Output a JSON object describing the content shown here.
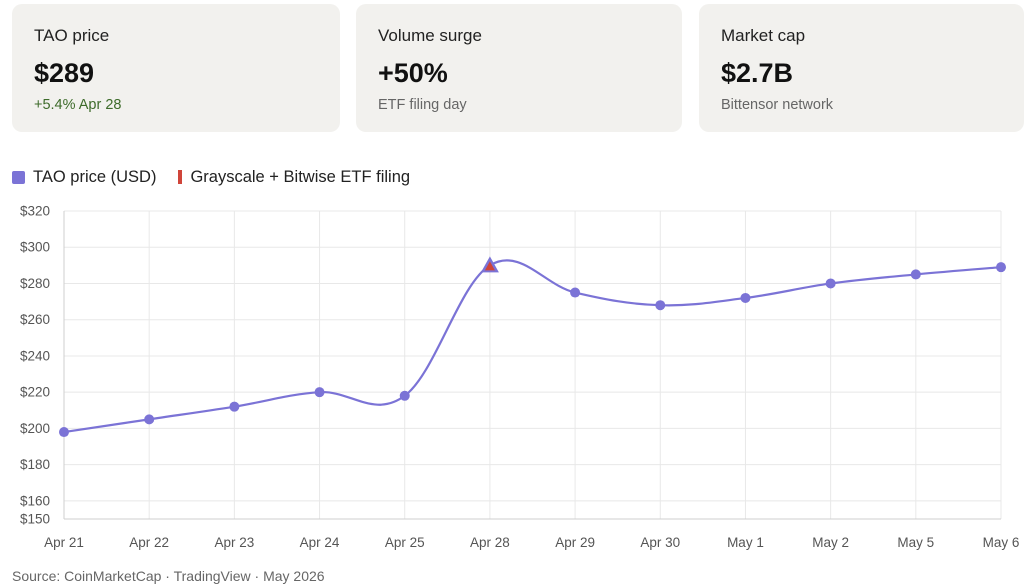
{
  "cards": [
    {
      "label": "TAO price",
      "value": "$289",
      "sub": "+5.4% Apr 28",
      "sub_tone": "positive"
    },
    {
      "label": "Volume surge",
      "value": "+50%",
      "sub": "ETF filing day",
      "sub_tone": "neutral"
    },
    {
      "label": "Market cap",
      "value": "$2.7B",
      "sub": "Bittensor network",
      "sub_tone": "neutral"
    }
  ],
  "legend": {
    "price_label": "TAO price (USD)",
    "event_label": "Grayscale + Bitwise ETF filing"
  },
  "source": "Source: CoinMarketCap · TradingView · May 2026",
  "colors": {
    "line": "#7b73d6",
    "event": "#d0453a",
    "positive": "#3d6b2a"
  },
  "chart_data": {
    "type": "line",
    "x": [
      "Apr 21",
      "Apr 22",
      "Apr 23",
      "Apr 24",
      "Apr 25",
      "Apr 28",
      "Apr 29",
      "Apr 30",
      "May 1",
      "May 2",
      "May 5",
      "May 6"
    ],
    "series": [
      {
        "name": "TAO price (USD)",
        "values": [
          198,
          205,
          212,
          220,
          218,
          290,
          275,
          268,
          272,
          280,
          285,
          289
        ]
      }
    ],
    "event": {
      "name": "Grayscale + Bitwise ETF filing",
      "x": "Apr 28",
      "value": 290,
      "marker": "triangle"
    },
    "yticks": [
      150,
      160,
      180,
      200,
      220,
      240,
      260,
      280,
      300,
      320
    ],
    "ytick_labels": [
      "$150",
      "$160",
      "$180",
      "$200",
      "$220",
      "$240",
      "$260",
      "$280",
      "$300",
      "$320"
    ],
    "ylim": [
      150,
      320
    ],
    "grid": true,
    "legend_position": "top-left",
    "curve": "smooth"
  }
}
